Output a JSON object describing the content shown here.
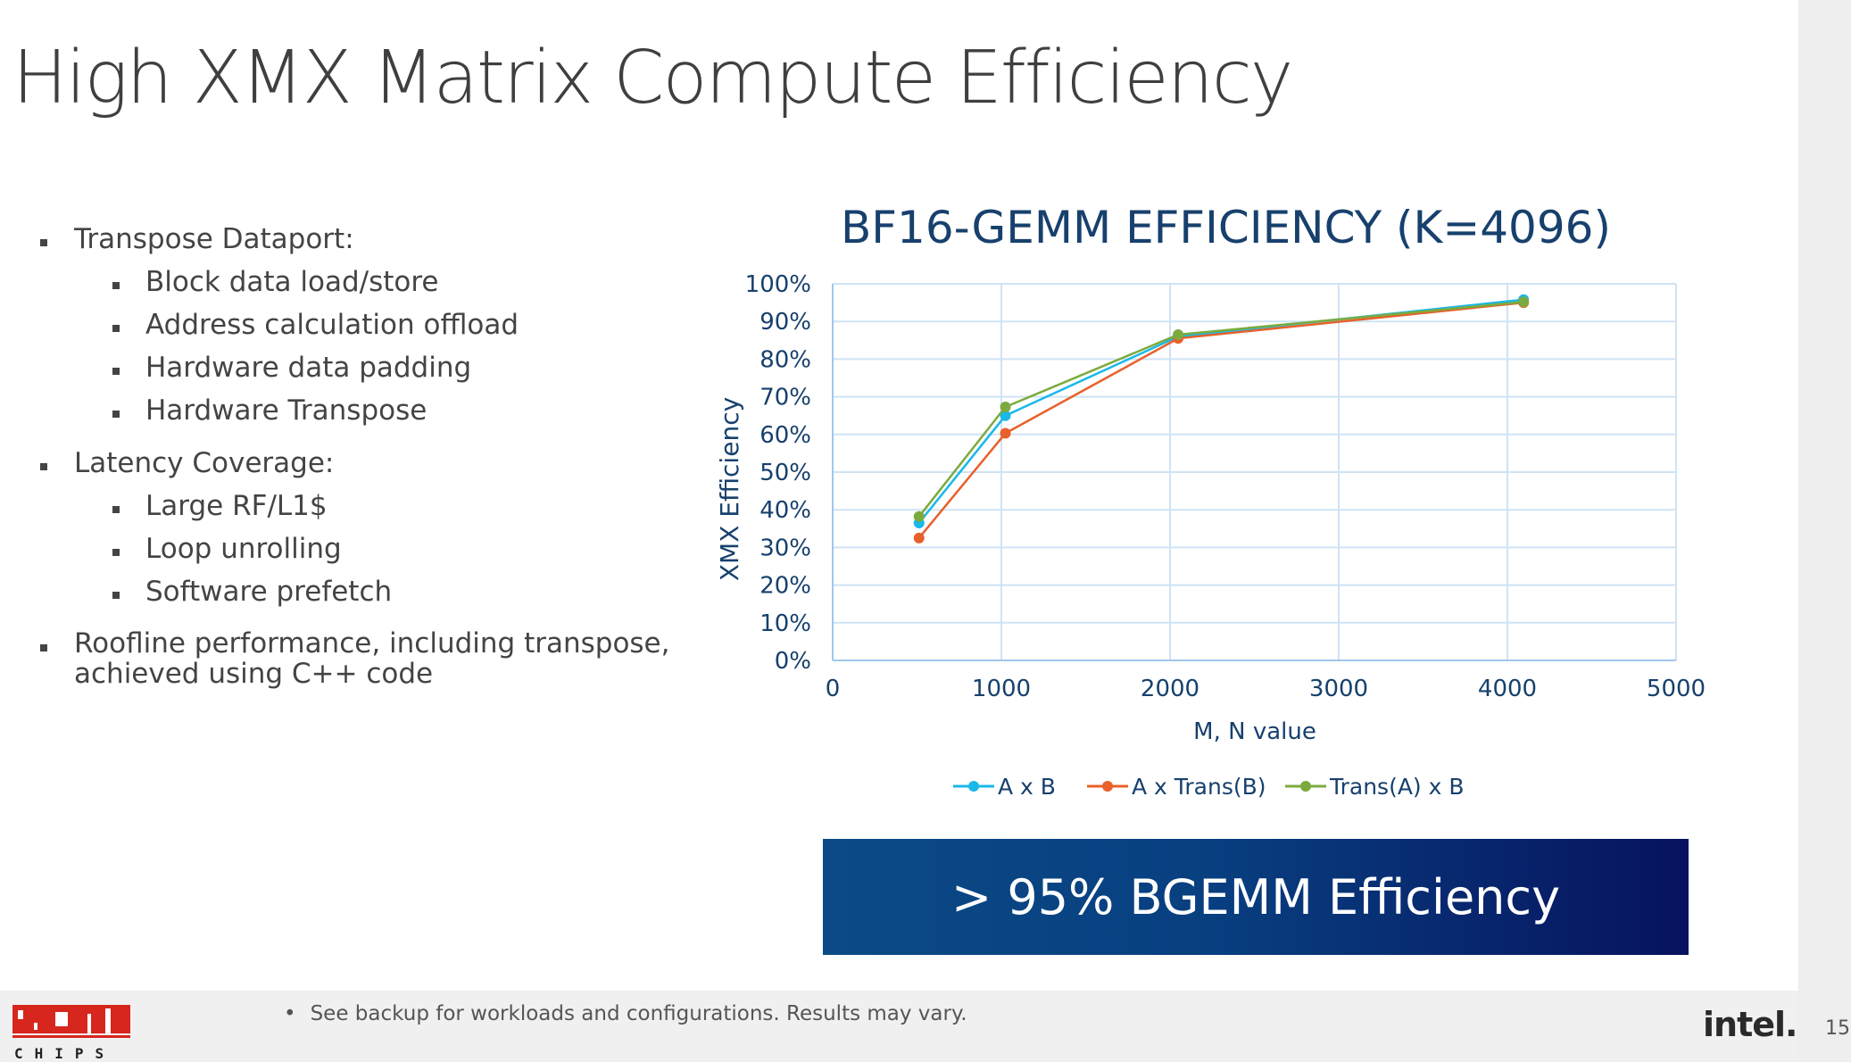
{
  "slide": {
    "title": "High XMX Matrix Compute Efficiency",
    "footnote": "See backup for workloads and configurations. Results may vary.",
    "callout": "> 95% BGEMM Efficiency",
    "page_number": "15",
    "logos": {
      "left": "HOT CHIPS",
      "right": "intel."
    }
  },
  "bullets": [
    {
      "text": "Transpose Dataport:",
      "children": [
        "Block data load/store",
        "Address calculation offload",
        "Hardware data padding",
        "Hardware Transpose"
      ]
    },
    {
      "text": "Latency Coverage:",
      "children": [
        "Large RF/L1$",
        "Loop unrolling",
        "Software prefetch"
      ]
    },
    {
      "text": "Roofline performance, including transpose, achieved using C++ code",
      "children": []
    }
  ],
  "chart_data": {
    "type": "scatter",
    "title": "BF16-GEMM EFFICIENCY (K=4096)",
    "xlabel": "M, N value",
    "ylabel": "XMX Efficiency",
    "xlim": [
      0,
      5000
    ],
    "ylim": [
      0,
      100
    ],
    "x_ticks": [
      "0",
      "1000",
      "2000",
      "3000",
      "4000",
      "5000"
    ],
    "y_ticks": [
      "0%",
      "10%",
      "20%",
      "30%",
      "40%",
      "50%",
      "60%",
      "70%",
      "80%",
      "90%",
      "100%"
    ],
    "grid": true,
    "legend_position": "bottom",
    "lines_connected": true,
    "series": [
      {
        "name": "A x B",
        "color": "#1ab8e8",
        "points": [
          [
            512,
            36.5
          ],
          [
            1024,
            65
          ],
          [
            2048,
            86
          ],
          [
            4096,
            95.8
          ]
        ]
      },
      {
        "name": "A x Trans(B)",
        "color": "#e8602a",
        "points": [
          [
            512,
            32.5
          ],
          [
            1024,
            60.3
          ],
          [
            2048,
            85.5
          ],
          [
            4096,
            95
          ]
        ]
      },
      {
        "name": "Trans(A) x B",
        "color": "#7bab3e",
        "points": [
          [
            512,
            38.2
          ],
          [
            1024,
            67.3
          ],
          [
            2048,
            86.5
          ],
          [
            4096,
            95.2
          ]
        ]
      }
    ]
  }
}
